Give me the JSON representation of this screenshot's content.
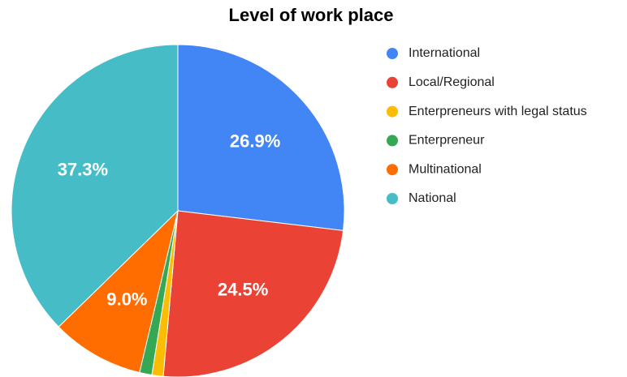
{
  "chart_data": {
    "type": "pie",
    "title": "Level of work place",
    "categories": [
      "International",
      "Local/Regional",
      "Enterpreneurs with legal status",
      "Enterpreneur",
      "Multinational",
      "National"
    ],
    "values": [
      26.9,
      24.5,
      1.1,
      1.2,
      9.0,
      37.3
    ],
    "value_labels": [
      "26.9%",
      "24.5%",
      null,
      null,
      "9.0%",
      "37.3%"
    ],
    "colors": [
      "#4285f4",
      "#ea4335",
      "#fbbc04",
      "#34a853",
      "#ff6d01",
      "#46bdc6"
    ],
    "legend": "right"
  }
}
